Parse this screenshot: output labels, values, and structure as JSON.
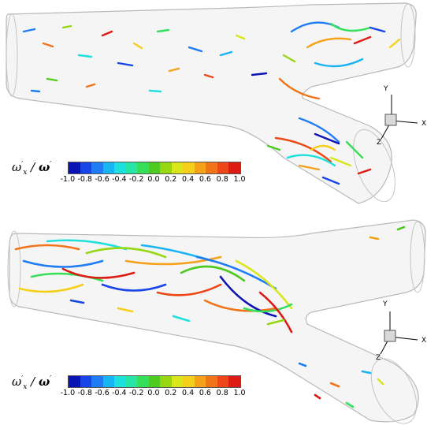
{
  "legend": {
    "var_symbol": "ω",
    "var_prime": "′",
    "var_sub": "x",
    "slash": "/",
    "mag_symbol": "ω",
    "mag_prime": "′",
    "ticks": [
      "-1.0",
      "-0.8",
      "-0.6",
      "-0.4",
      "-0.2",
      "0.0",
      "0.2",
      "0.4",
      "0.6",
      "0.8",
      "1.0"
    ],
    "colors": [
      "#0a13b4",
      "#1745e8",
      "#1f7cf4",
      "#19b4f2",
      "#1ee0dc",
      "#27e6a5",
      "#35df5a",
      "#4ecb1e",
      "#96d712",
      "#d8e61a",
      "#f4d01c",
      "#f6a11a",
      "#f27419",
      "#ec4716",
      "#dc1b12"
    ]
  },
  "axes": {
    "x": "X",
    "y": "Y",
    "z": "Z"
  },
  "panels": [
    {
      "id": "top-panel"
    },
    {
      "id": "bottom-panel"
    }
  ]
}
